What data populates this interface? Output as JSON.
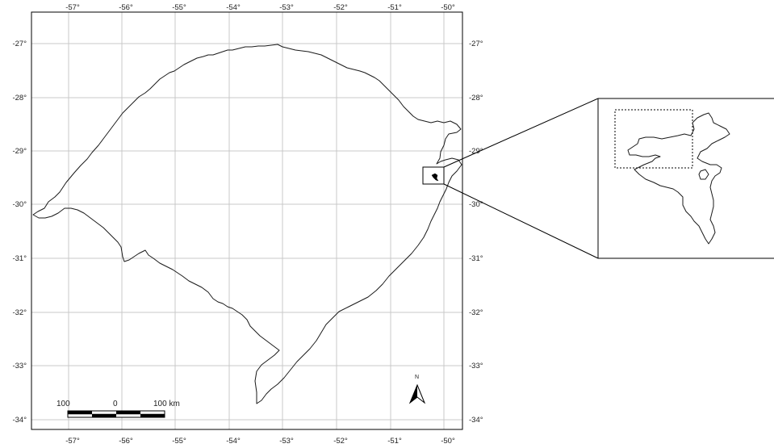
{
  "map": {
    "longitude_labels": [
      "-57°",
      "-56°",
      "-55°",
      "-54°",
      "-53°",
      "-52°",
      "-51°",
      "-50°"
    ],
    "latitude_labels": [
      "-27°",
      "-28°",
      "-29°",
      "-30°",
      "-31°",
      "-32°",
      "-33°",
      "-34°"
    ],
    "grid": true,
    "frame_color": "#000000",
    "grid_color": "#c8c8c8"
  },
  "scale_bar": {
    "left_label": "100",
    "mid_label": "0",
    "right_label": "100 km"
  },
  "north_arrow": {
    "label": "N",
    "icon": "north-arrow-icon"
  },
  "inset": {
    "has_dotted_extent_box": true
  }
}
